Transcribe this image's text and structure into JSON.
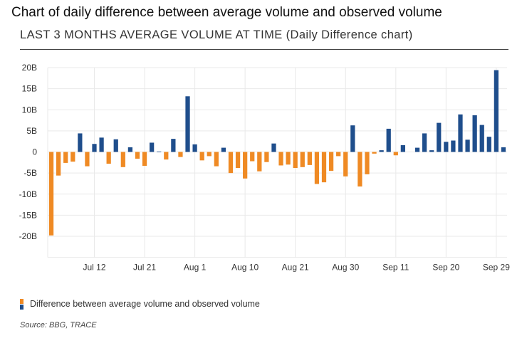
{
  "header": {
    "title": "Chart of daily difference between average volume and observed volume",
    "subtitle": "LAST 3 MONTHS AVERAGE VOLUME AT TIME (Daily Difference chart)"
  },
  "legend": {
    "label": "Difference between average volume and observed volume"
  },
  "footer": {
    "source": "Source: BBG, TRACE"
  },
  "colors": {
    "negative": "#ef8a24",
    "positive": "#1f4e8c",
    "grid": "#e9e9e9"
  },
  "chart_data": {
    "type": "bar",
    "title": "LAST 3 MONTHS AVERAGE VOLUME AT TIME (Daily Difference chart)",
    "xlabel": "",
    "ylabel": "",
    "ylim": [
      -25,
      20
    ],
    "yticks": [
      20,
      15,
      10,
      5,
      0,
      -5,
      -10,
      -15,
      -20
    ],
    "ytick_labels": [
      "20B",
      "15B",
      "10B",
      "5B",
      "0",
      "-5B",
      "-10B",
      "-15B",
      "-20B"
    ],
    "xtick_labels": [
      "Jul 12",
      "Jul 21",
      "Aug 1",
      "Aug 10",
      "Aug 21",
      "Aug 30",
      "Sep 11",
      "Sep 20",
      "Sep 29"
    ],
    "xtick_positions": [
      6,
      13,
      20,
      27,
      34,
      41,
      48,
      55,
      62
    ],
    "grid": true,
    "legend": "bottom-left",
    "series": [
      {
        "name": "Difference between average volume and observed volume",
        "values": [
          -19.8,
          -5.6,
          -2.6,
          -2.3,
          4.4,
          -3.4,
          1.9,
          3.4,
          -2.8,
          3.0,
          -3.6,
          1.1,
          -1.6,
          -3.3,
          2.2,
          0.1,
          -1.8,
          3.1,
          -1.2,
          13.2,
          1.8,
          -2.0,
          -1.0,
          -3.4,
          1.0,
          -5.0,
          -3.8,
          -6.3,
          -2.2,
          -4.6,
          -2.4,
          2.0,
          -3.2,
          -3.0,
          -3.8,
          -3.6,
          -3.1,
          -7.6,
          -7.2,
          -4.5,
          -1.0,
          -5.8,
          6.3,
          -8.2,
          -5.3,
          -0.4,
          0.4,
          5.5,
          -0.8,
          1.6,
          0.0,
          1.0,
          4.4,
          0.4,
          6.9,
          2.4,
          2.7,
          8.9,
          2.9,
          8.7,
          6.4,
          3.6,
          19.4,
          1.1
        ]
      }
    ]
  }
}
